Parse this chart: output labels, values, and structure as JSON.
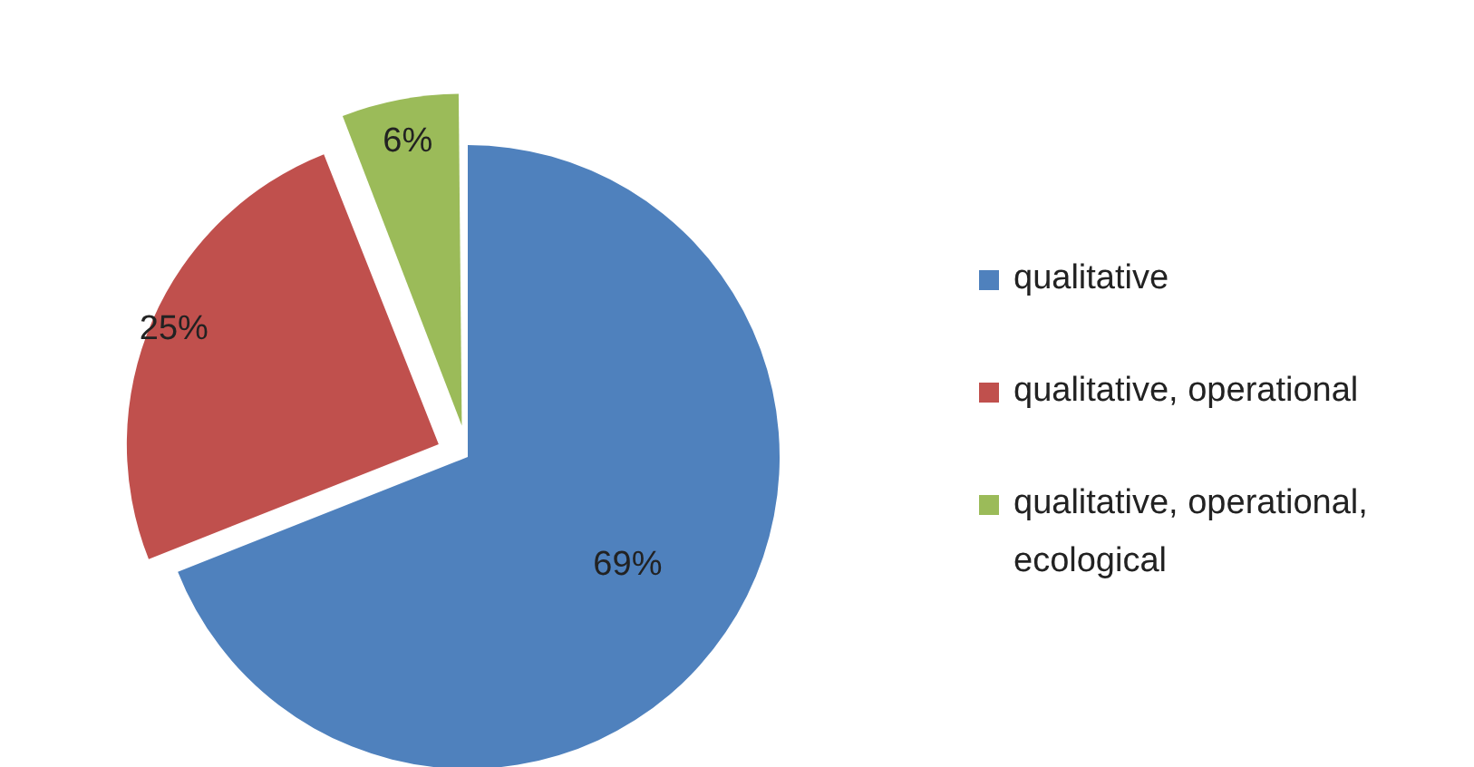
{
  "chart_data": {
    "type": "pie",
    "categories": [
      "qualitative",
      "qualitative, operational",
      "qualitative, operational, ecological"
    ],
    "values": [
      69,
      25,
      6
    ],
    "colors": [
      "#4f81bd",
      "#c0504d",
      "#9bbb59"
    ],
    "value_labels": [
      "69%",
      "25%",
      "6%"
    ],
    "legend": "right"
  }
}
